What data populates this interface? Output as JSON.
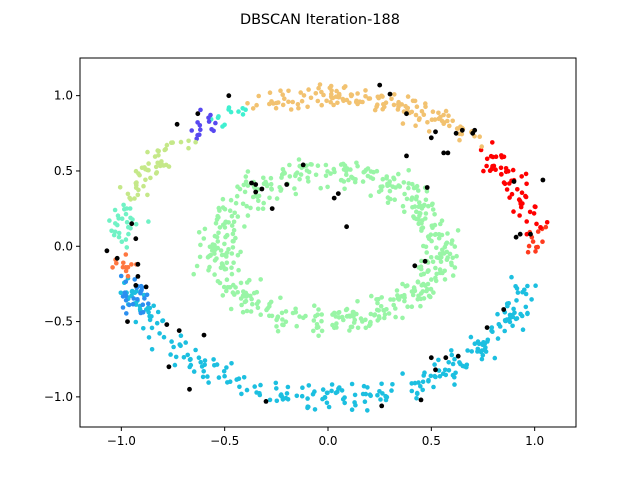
{
  "chart_data": {
    "type": "scatter",
    "title": "DBSCAN Iteration-188",
    "xlabel": "",
    "ylabel": "",
    "xlim": [
      -1.2,
      1.2
    ],
    "ylim": [
      -1.2,
      1.25
    ],
    "x_ticks": [
      -1.0,
      -0.5,
      0.0,
      0.5,
      1.0
    ],
    "x_tick_labels": [
      "−1.0",
      "−0.5",
      "0.0",
      "0.5",
      "1.0"
    ],
    "y_ticks": [
      -1.0,
      -0.5,
      0.0,
      0.5,
      1.0
    ],
    "y_tick_labels": [
      "−1.0",
      "−0.5",
      "0.0",
      "0.5",
      "1.0"
    ],
    "grid": false,
    "legend": "none",
    "clusters": [
      {
        "color": "#99f5a6",
        "shape": "ellipse",
        "cx": 0.0,
        "cy": 0.0,
        "rx": 0.53,
        "ry": 0.5,
        "a_start": 0,
        "a_end": 360,
        "count": 520,
        "noise": 0.045
      },
      {
        "color": "#1cbfe0",
        "shape": "arc",
        "r": 1.0,
        "a_start": 195,
        "a_end": 345,
        "count": 260,
        "noise": 0.04
      },
      {
        "color": "#2b8ff0",
        "shape": "arc",
        "r": 1.0,
        "a_start": 194,
        "a_end": 206,
        "count": 28,
        "noise": 0.04
      },
      {
        "color": "#ff7740",
        "shape": "arc",
        "r": 1.0,
        "a_start": 184,
        "a_end": 192,
        "count": 12,
        "noise": 0.03
      },
      {
        "color": "#ff3b1e",
        "shape": "arc",
        "r": 1.0,
        "a_start": 358,
        "a_end": 366,
        "count": 12,
        "noise": 0.03
      },
      {
        "color": "#ff0000",
        "shape": "arc",
        "r": 1.0,
        "a_start": 8,
        "a_end": 40,
        "count": 55,
        "noise": 0.04
      },
      {
        "color": "#f2c270",
        "shape": "arc",
        "r": 1.0,
        "a_start": 45,
        "a_end": 110,
        "count": 140,
        "noise": 0.04
      },
      {
        "color": "#3ff0d0",
        "shape": "arc",
        "r": 1.0,
        "a_start": 116,
        "a_end": 122,
        "count": 12,
        "noise": 0.03
      },
      {
        "color": "#5848f0",
        "shape": "arc",
        "r": 1.0,
        "a_start": 124,
        "a_end": 132,
        "count": 14,
        "noise": 0.03
      },
      {
        "color": "#c5e889",
        "shape": "arc",
        "r": 1.0,
        "a_start": 136,
        "a_end": 162,
        "count": 48,
        "noise": 0.035
      },
      {
        "color": "#70f2c5",
        "shape": "arc",
        "r": 1.0,
        "a_start": 164,
        "a_end": 180,
        "count": 28,
        "noise": 0.035
      }
    ],
    "noise_points": {
      "color": "#000000",
      "x": [
        -1.07,
        -0.95,
        -0.93,
        -1.02,
        -0.92,
        -0.88,
        -0.92,
        -0.78,
        -0.72,
        -0.6,
        -0.67,
        -0.63,
        -0.73,
        -0.48,
        -0.37,
        -0.35,
        -0.32,
        -0.27,
        -0.35,
        -0.12,
        -0.2,
        0.03,
        0.25,
        0.3,
        0.38,
        0.5,
        0.58,
        0.62,
        0.71,
        0.7,
        0.65,
        0.52,
        0.38,
        0.48,
        0.56,
        0.9,
        1.04,
        0.93,
        0.91,
        0.85,
        0.77,
        0.63,
        0.57,
        0.5,
        0.45,
        0.26,
        -0.3,
        -0.77,
        -0.93,
        -0.97,
        0.98,
        0.52,
        0.47,
        0.42,
        0.09,
        0.05
      ],
      "y": [
        -0.03,
        0.15,
        0.05,
        -0.08,
        -0.12,
        -0.27,
        -0.2,
        -0.52,
        -0.56,
        -0.59,
        -0.95,
        0.88,
        0.81,
        1.0,
        0.42,
        0.36,
        0.38,
        0.25,
        0.41,
        0.54,
        0.41,
        0.32,
        1.07,
        1.01,
        0.88,
        0.72,
        0.62,
        0.75,
        0.77,
        0.75,
        0.77,
        0.76,
        0.6,
        0.39,
        0.62,
        0.43,
        0.44,
        0.08,
        0.06,
        -0.42,
        -0.54,
        -0.73,
        -0.74,
        -0.74,
        -1.02,
        -1.06,
        -1.03,
        -0.8,
        -0.26,
        -0.5,
        0.08,
        -0.82,
        -0.1,
        -0.13,
        0.13,
        0.35
      ]
    }
  }
}
